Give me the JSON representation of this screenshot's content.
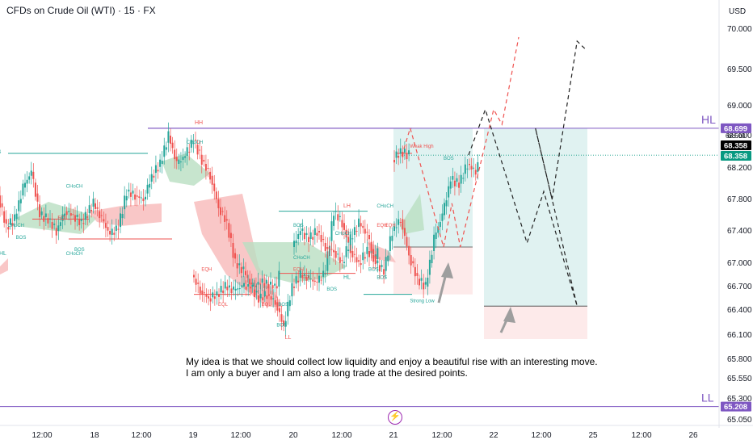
{
  "header": {
    "title": "CFDs on Crude Oil (WTI) · 15 · FX",
    "currency": "USD"
  },
  "annotation_text": {
    "line1": "My idea is that we should collect low liquidity and enjoy a beautiful rise with an interesting move.",
    "line2": "I am only a buyer and I am also a long trade at the desired points."
  },
  "bottom_icon": "lightning-icon",
  "colors": {
    "purple": "#7e57c2",
    "teal": "#26a69a",
    "red": "#ef5350",
    "green_badge": "#089981",
    "cloud_green": "#b9dfc2",
    "cloud_red": "#f7b9b9"
  },
  "chart_data": {
    "type": "candlestick",
    "y_axis": {
      "ylim": [
        65.05,
        70.15
      ],
      "ticks": [
        "70.000",
        "69.500",
        "69.000",
        "68.600",
        "68.200",
        "67.800",
        "67.400",
        "67.000",
        "66.700",
        "66.400",
        "66.100",
        "65.800",
        "65.550",
        "65.300",
        "65.050"
      ]
    },
    "x_axis": {
      "ticks": [
        "12:00",
        "18",
        "12:00",
        "19",
        "12:00",
        "20",
        "12:00",
        "21",
        "12:00",
        "22",
        "12:00",
        "25",
        "12:00",
        "26"
      ]
    },
    "price_labels": {
      "hl_level": "68.699",
      "current_1": "68.358",
      "current_2": "68.358",
      "ll_level": "65.208",
      "hidden_top": "68.600"
    },
    "key_levels": [
      {
        "label": "HL",
        "value": 68.699
      },
      {
        "label": "LL",
        "value": 65.208
      }
    ],
    "price_path": [
      {
        "x": "17 06:00",
        "y": 67.2
      },
      {
        "x": "17 07:00",
        "y": 67.6
      },
      {
        "x": "17 08:00",
        "y": 67.55
      },
      {
        "x": "17 09:00",
        "y": 68.2
      },
      {
        "x": "17 10:00",
        "y": 67.8
      },
      {
        "x": "17 11:00",
        "y": 67.4
      },
      {
        "x": "17 12:00",
        "y": 67.85
      },
      {
        "x": "17 13:00",
        "y": 67.45
      },
      {
        "x": "17 14:00",
        "y": 67.55
      },
      {
        "x": "17 15:00",
        "y": 67.95
      },
      {
        "x": "17 16:00",
        "y": 68.15
      },
      {
        "x": "17 17:00",
        "y": 67.6
      },
      {
        "x": "17 18:00",
        "y": 67.55
      },
      {
        "x": "17 19:00",
        "y": 67.4
      },
      {
        "x": "17 20:00",
        "y": 67.65
      },
      {
        "x": "17 21:00",
        "y": 67.6
      },
      {
        "x": "17 22:00",
        "y": 67.5
      },
      {
        "x": "18 00:00",
        "y": 67.75
      },
      {
        "x": "18 01:00",
        "y": 67.55
      },
      {
        "x": "18 02:00",
        "y": 67.35
      },
      {
        "x": "18 03:00",
        "y": 67.45
      },
      {
        "x": "18 04:00",
        "y": 67.9
      },
      {
        "x": "18 05:00",
        "y": 67.85
      },
      {
        "x": "18 06:00",
        "y": 67.8
      },
      {
        "x": "18 07:00",
        "y": 68.1
      },
      {
        "x": "18 08:00",
        "y": 68.25
      },
      {
        "x": "18 09:00",
        "y": 68.6
      },
      {
        "x": "18 10:00",
        "y": 68.25
      },
      {
        "x": "18 11:00",
        "y": 68.35
      },
      {
        "x": "18 12:00",
        "y": 68.55
      },
      {
        "x": "18 13:00",
        "y": 68.3
      },
      {
        "x": "18 14:00",
        "y": 68.1
      },
      {
        "x": "18 15:00",
        "y": 67.7
      },
      {
        "x": "18 16:00",
        "y": 67.5
      },
      {
        "x": "18 17:00",
        "y": 67.0
      },
      {
        "x": "18 18:00",
        "y": 66.9
      },
      {
        "x": "18 19:00",
        "y": 66.7
      },
      {
        "x": "18 20:00",
        "y": 66.75
      },
      {
        "x": "18 22:00",
        "y": 66.7
      },
      {
        "x": "19 00:00",
        "y": 66.85
      },
      {
        "x": "19 01:00",
        "y": 66.65
      },
      {
        "x": "19 02:00",
        "y": 66.55
      },
      {
        "x": "19 03:00",
        "y": 66.6
      },
      {
        "x": "19 04:00",
        "y": 66.7
      },
      {
        "x": "19 05:00",
        "y": 66.65
      },
      {
        "x": "19 06:00",
        "y": 66.7
      },
      {
        "x": "19 07:00",
        "y": 66.7
      },
      {
        "x": "19 08:00",
        "y": 66.55
      },
      {
        "x": "19 09:00",
        "y": 66.6
      },
      {
        "x": "19 10:00",
        "y": 66.5
      },
      {
        "x": "19 11:00",
        "y": 66.2
      },
      {
        "x": "19 12:00",
        "y": 66.7
      },
      {
        "x": "19 13:00",
        "y": 66.85
      },
      {
        "x": "19 14:00",
        "y": 66.8
      },
      {
        "x": "19 15:00",
        "y": 66.75
      },
      {
        "x": "19 16:00",
        "y": 66.9
      },
      {
        "x": "19 17:00",
        "y": 67.65
      },
      {
        "x": "19 18:00",
        "y": 67.5
      },
      {
        "x": "19 19:00",
        "y": 67.15
      },
      {
        "x": "19 20:00",
        "y": 67.0
      },
      {
        "x": "19 21:00",
        "y": 67.15
      },
      {
        "x": "19 22:00",
        "y": 67.05
      },
      {
        "x": "20 00:00",
        "y": 67.2
      },
      {
        "x": "20 01:00",
        "y": 67.4
      },
      {
        "x": "20 02:00",
        "y": 67.3
      },
      {
        "x": "20 03:00",
        "y": 67.4
      },
      {
        "x": "20 04:00",
        "y": 67.2
      },
      {
        "x": "20 05:00",
        "y": 67.15
      },
      {
        "x": "20 06:00",
        "y": 67.0
      },
      {
        "x": "20 07:00",
        "y": 67.3
      },
      {
        "x": "20 08:00",
        "y": 67.5
      },
      {
        "x": "20 09:00",
        "y": 67.35
      },
      {
        "x": "20 10:00",
        "y": 67.0
      },
      {
        "x": "20 11:00",
        "y": 66.9
      },
      {
        "x": "20 12:00",
        "y": 67.4
      },
      {
        "x": "20 13:00",
        "y": 67.55
      },
      {
        "x": "20 14:00",
        "y": 67.1
      },
      {
        "x": "20 15:00",
        "y": 66.8
      },
      {
        "x": "20 16:00",
        "y": 66.7
      },
      {
        "x": "20 17:00",
        "y": 67.3
      },
      {
        "x": "20 18:00",
        "y": 67.6
      },
      {
        "x": "20 19:00",
        "y": 68.05
      },
      {
        "x": "20 20:00",
        "y": 68.0
      },
      {
        "x": "20 21:00",
        "y": 68.25
      },
      {
        "x": "20 22:00",
        "y": 68.15
      },
      {
        "x": "21 00:00",
        "y": 68.3
      },
      {
        "x": "21 01:00",
        "y": 68.4
      },
      {
        "x": "21 02:00",
        "y": 68.358
      }
    ],
    "projection_black": [
      {
        "x": "21 09:00",
        "y": 68.36
      },
      {
        "x": "21 11:00",
        "y": 68.95
      },
      {
        "x": "21 16:00",
        "y": 67.25
      },
      {
        "x": "21 18:00",
        "y": 67.9
      },
      {
        "x": "21 22:00",
        "y": 66.45
      },
      {
        "x": "22 05:00",
        "y": 68.7
      },
      {
        "x": "22 07:00",
        "y": 67.8
      },
      {
        "x": "22 10:00",
        "y": 69.85
      },
      {
        "x": "22 11:00",
        "y": 69.75
      }
    ],
    "projection_red": [
      {
        "x": "21 01:00",
        "y": 68.35
      },
      {
        "x": "21 02:00",
        "y": 68.7
      },
      {
        "x": "21 06:00",
        "y": 67.2
      },
      {
        "x": "21 07:00",
        "y": 67.75
      },
      {
        "x": "21 08:00",
        "y": 67.2
      },
      {
        "x": "21 12:00",
        "y": 68.95
      },
      {
        "x": "21 13:00",
        "y": 68.75
      },
      {
        "x": "21 15:00",
        "y": 69.9
      }
    ],
    "position_zones": [
      {
        "kind": "long-1",
        "profit": [
          67.2,
          68.699
        ],
        "stop": [
          66.6,
          67.2
        ]
      },
      {
        "kind": "long-2",
        "profit": [
          66.45,
          68.699
        ],
        "stop": [
          66.05,
          66.45
        ]
      }
    ],
    "structure_labels": [
      {
        "text": "HH",
        "x": "17 06:00",
        "y": 68.38
      },
      {
        "text": "BOS",
        "x": "17 11:00",
        "y": 68.38
      },
      {
        "text": "EQL",
        "x": "17 09:00",
        "y": 67.45
      },
      {
        "text": "CHoCH",
        "x": "17 13:00",
        "y": 67.45
      },
      {
        "text": "BOS",
        "x": "17 14:00",
        "y": 67.3
      },
      {
        "text": "HL",
        "x": "17 12:00",
        "y": 67.1
      },
      {
        "text": "CHoCH",
        "x": "17 20:00",
        "y": 67.1
      },
      {
        "text": "EQL",
        "x": "17 19:00",
        "y": 67.55
      },
      {
        "text": "CHoCH",
        "x": "17 20:00",
        "y": 67.95
      },
      {
        "text": "HH",
        "x": "18 12:00",
        "y": 68.75
      },
      {
        "text": "LH",
        "x": "19 18:00",
        "y": 67.7
      },
      {
        "text": "CHoCH",
        "x": "19 22:00",
        "y": 67.7
      },
      {
        "text": "HL",
        "x": "19 18:00",
        "y": 66.8
      },
      {
        "text": "BOS",
        "x": "19 22:00",
        "y": 66.8
      },
      {
        "text": "LL",
        "x": "19 11:00",
        "y": 66.05
      },
      {
        "text": "BOS",
        "x": "19 10:00",
        "y": 66.2
      },
      {
        "text": "EQH",
        "x": "19 01:00",
        "y": 66.9
      },
      {
        "text": "EQL",
        "x": "19 03:00",
        "y": 66.45
      },
      {
        "text": "EQH",
        "x": "19 22:00",
        "y": 67.45
      },
      {
        "text": "EQH",
        "x": "19 23:00",
        "y": 67.45
      },
      {
        "text": "BOS",
        "x": "20 00:00",
        "y": 67.45
      },
      {
        "text": "CHoCH",
        "x": "20 05:00",
        "y": 67.35
      },
      {
        "text": "CHoCH",
        "x": "20 00:00",
        "y": 67.05
      },
      {
        "text": "BOS",
        "x": "20 09:00",
        "y": 66.9
      },
      {
        "text": "BOS",
        "x": "20 04:00",
        "y": 66.65
      },
      {
        "text": "EQH",
        "x": "19 12:00",
        "y": 66.9
      },
      {
        "text": "EQL",
        "x": "19 13:00",
        "y": 66.8
      },
      {
        "text": "EQL",
        "x": "18 20:00",
        "y": 66.45
      },
      {
        "text": "BOS",
        "x": "18 22:00",
        "y": 66.45
      },
      {
        "text": "BOS",
        "x": "20 18:00",
        "y": 68.3
      },
      {
        "text": "BOS",
        "x": "17 21:00",
        "y": 67.15
      },
      {
        "text": "CHoCH",
        "x": "18 11:00",
        "y": 68.5
      }
    ],
    "zone_labels": [
      {
        "text": "Weak High",
        "x": "21 01:00",
        "y": 68.45
      },
      {
        "text": "Strong Low",
        "x": "21 01:00",
        "y": 66.5
      }
    ]
  }
}
